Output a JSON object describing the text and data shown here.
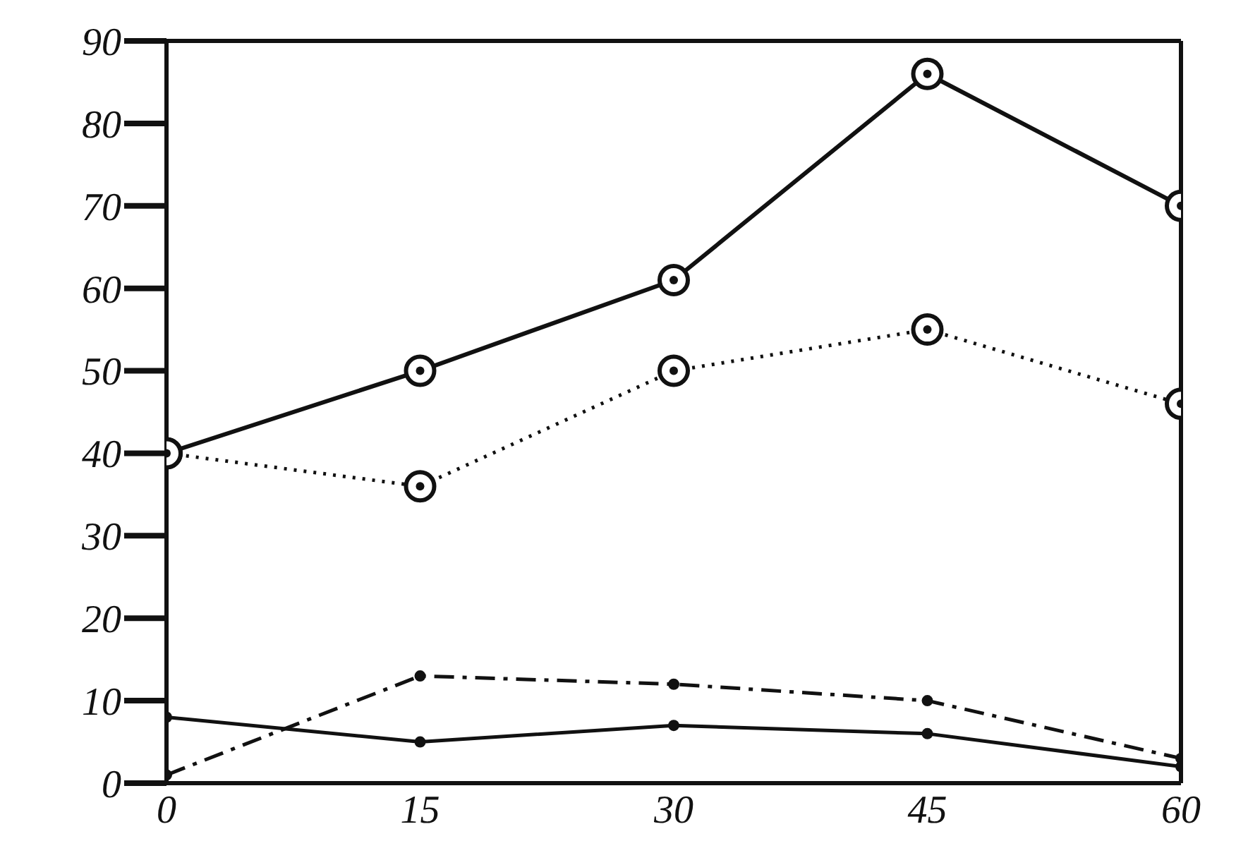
{
  "chart_data": {
    "type": "line",
    "x": [
      0,
      15,
      30,
      45,
      60
    ],
    "series": [
      {
        "color": "#111111",
        "values": [
          40,
          50,
          61,
          86,
          70
        ],
        "marker": "circle",
        "line_style": "solid"
      },
      {
        "color": "#111111",
        "values": [
          40,
          36,
          50,
          55,
          46
        ],
        "marker": "circle",
        "line_style": "dotted"
      },
      {
        "color": "#111111",
        "values": [
          1,
          13,
          12,
          10,
          3
        ],
        "marker": "circle",
        "line_style": "dashed"
      },
      {
        "color": "#111111",
        "values": [
          8,
          5,
          7,
          6,
          2
        ],
        "marker": "circle",
        "line_style": "solid"
      }
    ],
    "xlim": [
      0,
      60
    ],
    "xticks": [
      0,
      15,
      30,
      45,
      60
    ],
    "ylim": [
      0,
      90
    ],
    "yticks": [
      0,
      10,
      20,
      30,
      40,
      50,
      60,
      70,
      80,
      90
    ],
    "grid": false,
    "legend": false
  }
}
